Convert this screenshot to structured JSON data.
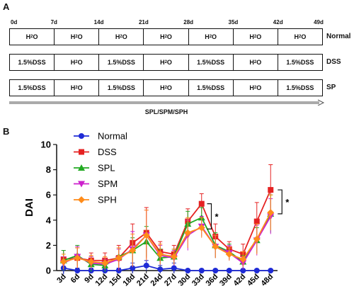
{
  "panel_a": {
    "label": "A",
    "days": [
      "0d",
      "7d",
      "14d",
      "21d",
      "28d",
      "35d",
      "42d",
      "49d"
    ],
    "groups": [
      {
        "name": "Normal",
        "cells": [
          "H2O",
          "H2O",
          "H2O",
          "H2O",
          "H2O",
          "H2O",
          "H2O"
        ]
      },
      {
        "name": "DSS",
        "cells": [
          "1.5%DSS",
          "H2O",
          "1.5%DSS",
          "H2O",
          "1.5%DSS",
          "H2O",
          "1.5%DSS"
        ]
      },
      {
        "name": "SP",
        "cells": [
          "1.5%DSS",
          "H2O",
          "1.5%DSS",
          "H2O",
          "1.5%DSS",
          "H2O",
          "1.5%DSS"
        ]
      }
    ],
    "treatment_label": "SPL/SPM/SPH"
  },
  "panel_b": {
    "label": "B"
  },
  "chart_data": {
    "type": "line",
    "ylabel": "DAI",
    "xlabel": "",
    "ylim": [
      0,
      10
    ],
    "yticks": [
      0,
      2,
      4,
      6,
      8,
      10
    ],
    "categories": [
      "3d",
      "6d",
      "9d",
      "12d",
      "15d",
      "18d",
      "21d",
      "24d",
      "27d",
      "30d",
      "33d",
      "36d",
      "39d",
      "42d",
      "45d",
      "48d"
    ],
    "legend_position": "top-left",
    "series": [
      {
        "name": "Normal",
        "color": "#1f2bd6",
        "marker": "circle",
        "values": [
          0.2,
          0.0,
          0.0,
          0.0,
          0.0,
          0.2,
          0.4,
          0.1,
          0.2,
          0.0,
          0.0,
          0.0,
          0.0,
          0.0,
          0.0,
          0.0
        ],
        "errors": [
          0.5,
          0.2,
          0.2,
          0.2,
          0.2,
          0.4,
          0.4,
          0.3,
          0.4,
          0.1,
          0.1,
          0.1,
          0.1,
          0.1,
          0.1,
          0.1
        ]
      },
      {
        "name": "DSS",
        "color": "#e52222",
        "marker": "square",
        "values": [
          0.9,
          1.0,
          0.8,
          0.8,
          1.0,
          2.2,
          3.0,
          1.5,
          1.3,
          3.9,
          5.3,
          2.7,
          1.7,
          1.3,
          3.9,
          6.4
        ],
        "errors": [
          0.7,
          0.8,
          0.6,
          0.6,
          1.0,
          1.5,
          2.0,
          0.8,
          0.7,
          1.0,
          0.8,
          1.0,
          0.6,
          0.8,
          1.5,
          2.0
        ]
      },
      {
        "name": "SPL",
        "color": "#22aa22",
        "marker": "triangle-up",
        "values": [
          0.8,
          1.2,
          0.5,
          0.4,
          1.1,
          1.6,
          2.3,
          1.0,
          1.1,
          3.7,
          4.2,
          2.0,
          1.5,
          0.7,
          2.4,
          4.5
        ],
        "errors": [
          0.8,
          0.8,
          0.6,
          0.5,
          0.7,
          1.0,
          1.2,
          0.7,
          0.6,
          1.0,
          0.8,
          1.0,
          0.6,
          0.5,
          1.0,
          1.5
        ]
      },
      {
        "name": "SPM",
        "color": "#cc22cc",
        "marker": "triangle-down",
        "values": [
          0.6,
          1.1,
          0.6,
          0.5,
          0.9,
          1.7,
          2.8,
          1.2,
          1.0,
          2.8,
          3.5,
          1.9,
          1.4,
          0.6,
          2.4,
          4.3
        ],
        "errors": [
          0.5,
          0.8,
          0.5,
          0.4,
          0.8,
          1.4,
          2.0,
          0.8,
          0.6,
          1.2,
          0.8,
          0.9,
          0.6,
          0.5,
          1.2,
          1.4
        ]
      },
      {
        "name": "SPH",
        "color": "#ff8c1a",
        "marker": "diamond",
        "values": [
          0.7,
          1.0,
          0.7,
          0.6,
          1.0,
          1.6,
          2.8,
          1.3,
          1.1,
          3.0,
          3.4,
          1.9,
          1.3,
          0.9,
          2.5,
          4.6
        ],
        "errors": [
          0.6,
          0.8,
          0.5,
          0.5,
          0.8,
          1.3,
          2.0,
          0.8,
          0.6,
          1.2,
          0.8,
          0.9,
          0.5,
          0.6,
          1.2,
          1.4
        ]
      }
    ],
    "annotations": [
      {
        "text": "*",
        "between": [
          "33d",
          "36d"
        ],
        "range": [
          3.3,
          5.3
        ]
      },
      {
        "text": "*",
        "at": "48d",
        "range": [
          4.5,
          6.4
        ]
      }
    ]
  }
}
